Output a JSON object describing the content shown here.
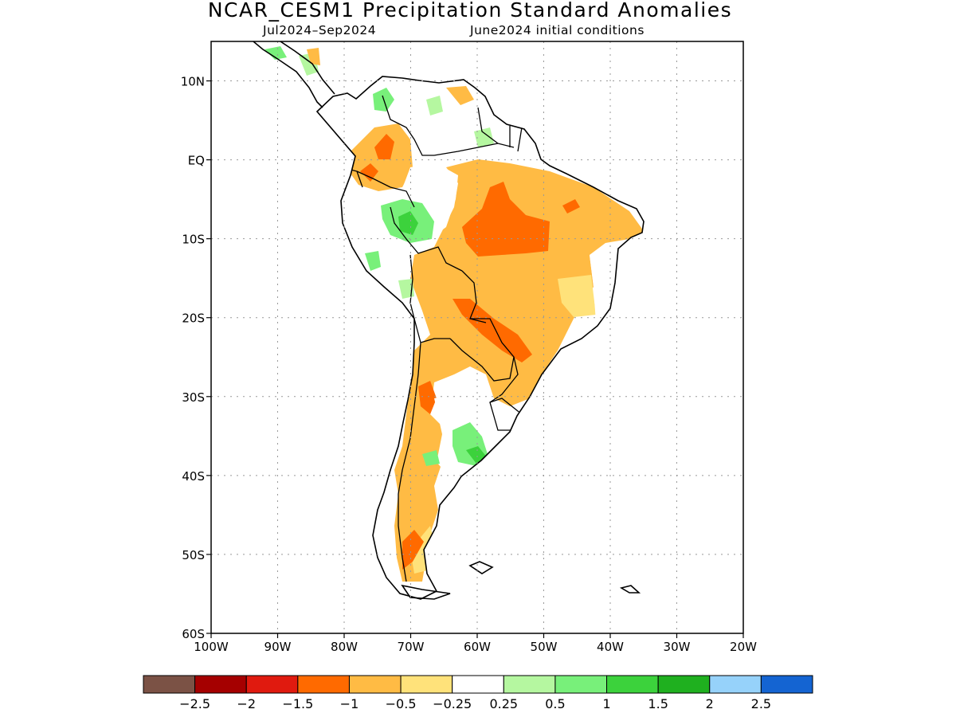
{
  "map": {
    "title": "NCAR_CESM1 Precipitation Standard Anomalies",
    "period": "Jul2024–Sep2024",
    "initial_conditions": "June2024 initial conditions",
    "longitude_range": [
      -100,
      -20
    ],
    "latitude_range": [
      -60,
      15
    ],
    "x_ticks": [
      {
        "value": -100,
        "label": "100W"
      },
      {
        "value": -90,
        "label": "90W"
      },
      {
        "value": -80,
        "label": "80W"
      },
      {
        "value": -70,
        "label": "70W"
      },
      {
        "value": -60,
        "label": "60W"
      },
      {
        "value": -50,
        "label": "50W"
      },
      {
        "value": -40,
        "label": "40W"
      },
      {
        "value": -30,
        "label": "30W"
      },
      {
        "value": -20,
        "label": "20W"
      }
    ],
    "y_ticks": [
      {
        "value": 10,
        "label": "10N"
      },
      {
        "value": 0,
        "label": "EQ"
      },
      {
        "value": -10,
        "label": "10S"
      },
      {
        "value": -20,
        "label": "20S"
      },
      {
        "value": -30,
        "label": "30S"
      },
      {
        "value": -40,
        "label": "40S"
      },
      {
        "value": -50,
        "label": "50S"
      },
      {
        "value": -60,
        "label": "60S"
      }
    ],
    "gridlines": true
  },
  "colorbar": {
    "colors": [
      "#7b5245",
      "#a50000",
      "#e01a0f",
      "#ff6a00",
      "#ffbb44",
      "#ffe27a",
      "#ffffff",
      "#b5f7a0",
      "#78f07a",
      "#3cd23c",
      "#1fb01f",
      "#96d2fa",
      "#1464d2"
    ],
    "labels": [
      "−2.5",
      "−2",
      "−1.5",
      "−1",
      "−0.5",
      "−0.25",
      "0.25",
      "0.5",
      "1",
      "1.5",
      "2",
      "2.5"
    ]
  }
}
